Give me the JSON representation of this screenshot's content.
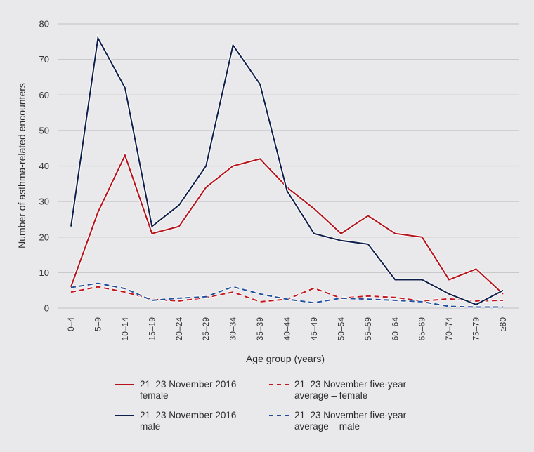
{
  "chart_data": {
    "type": "line",
    "title": "",
    "xlabel": "Age group (years)",
    "ylabel": "Number of asthma-related encounters",
    "ylim": [
      0,
      80
    ],
    "yticks": [
      0,
      10,
      20,
      30,
      40,
      50,
      60,
      70,
      80
    ],
    "grid": true,
    "legend_position": "bottom",
    "categories": [
      "0–4",
      "5–9",
      "10–14",
      "15–19",
      "20–24",
      "25–29",
      "30–34",
      "35–39",
      "40–44",
      "45–49",
      "50–54",
      "55–59",
      "60–64",
      "65–69",
      "70–74",
      "75–79",
      "≥80"
    ],
    "series": [
      {
        "name": "21–23 November 2016 – female",
        "name_line1": "21–23 November 2016 –",
        "name_line2": "female",
        "color": "#b5121b",
        "style": "solid",
        "values": [
          6,
          27,
          43,
          21,
          23,
          34,
          40,
          42,
          34,
          28,
          21,
          26,
          21,
          20,
          8,
          11,
          4
        ]
      },
      {
        "name": "21–23 November 2016 – male",
        "name_line1": "21–23 November 2016 –",
        "name_line2": "male",
        "color": "#0f1f4b",
        "style": "solid",
        "values": [
          23,
          76,
          62,
          23,
          29,
          40,
          74,
          63,
          33,
          21,
          19,
          18,
          8,
          8,
          4,
          1,
          5
        ]
      },
      {
        "name": "21–23 November five-year average – female",
        "name_line1": "21–23 November five-year",
        "name_line2": "average – female",
        "color": "#c4161c",
        "style": "dashed",
        "values": [
          4.5,
          6,
          4.5,
          2.5,
          2,
          3,
          4.5,
          1.8,
          2.5,
          5.6,
          2.8,
          3.4,
          3,
          2,
          2.6,
          2,
          2.2
        ]
      },
      {
        "name": "21–23 November five-year average – male",
        "name_line1": "21–23 November five-year",
        "name_line2": "average – male",
        "color": "#1f4e9c",
        "style": "dashed",
        "values": [
          5.8,
          7,
          5.5,
          2.2,
          2.8,
          3.2,
          6,
          4,
          2.5,
          1.5,
          2.8,
          2.5,
          2.2,
          1.8,
          0.5,
          0.3,
          0.3
        ]
      }
    ]
  }
}
